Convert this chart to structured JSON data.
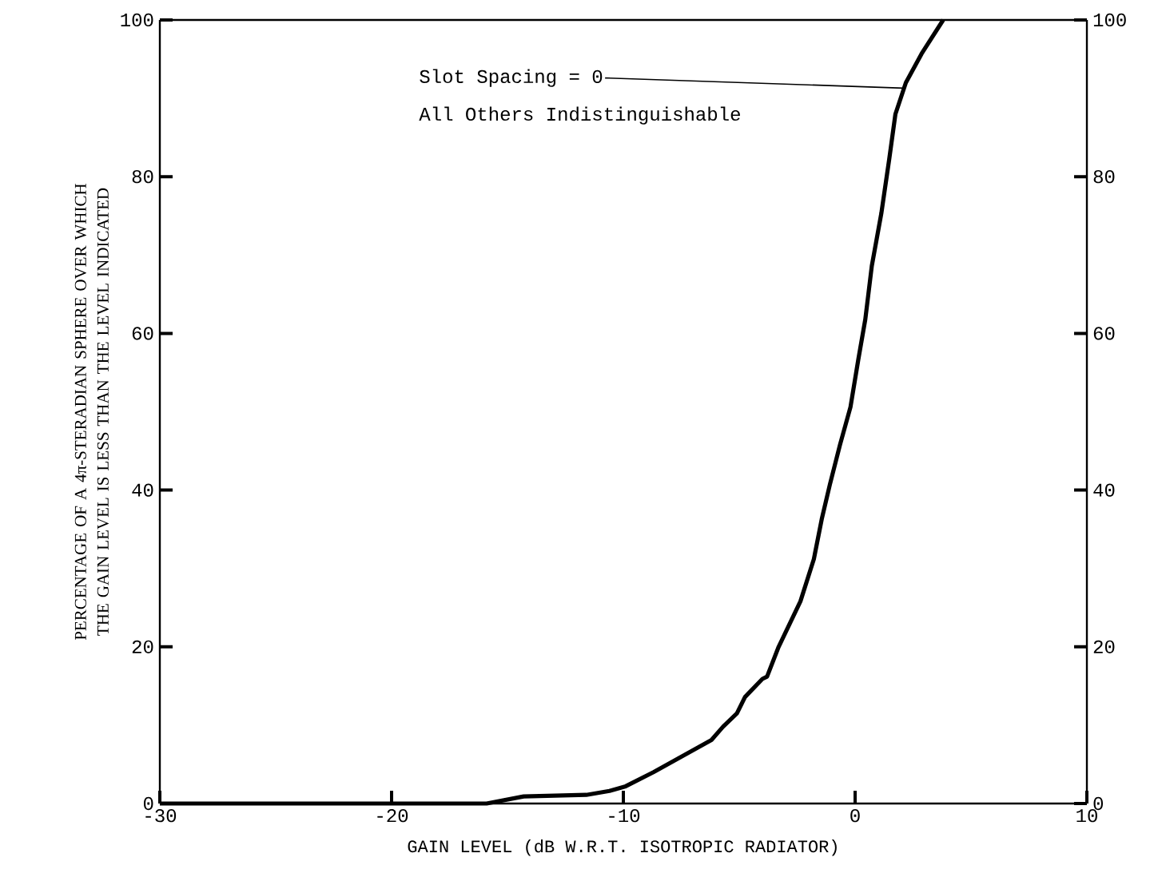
{
  "chart_data": {
    "type": "line",
    "xlabel": "GAIN LEVEL (dB W.R.T. ISOTROPIC RADIATOR)",
    "ylabel": "PERCENTAGE OF A 4π-STERADIAN SPHERE OVER WHICH THE GAIN LEVEL IS LESS THAN THE LEVEL INDICATED",
    "series": [
      {
        "color": "#000000",
        "x": [
          -30,
          -15.9,
          -14.3,
          -11.6,
          -10.6,
          -9.9,
          -8.7,
          -6.2,
          -5.7,
          -5.1,
          -4.75,
          -4.0,
          -3.8,
          -3.3,
          -2.36,
          -1.78,
          -1.44,
          -1.09,
          -0.65,
          -0.2,
          0.14,
          0.44,
          0.72,
          1.13,
          1.47,
          1.74,
          2.19,
          2.87,
          3.8
        ],
        "values": [
          0,
          0,
          0.9,
          1.1,
          1.6,
          2.2,
          4,
          8.1,
          9.8,
          11.5,
          13.6,
          15.9,
          16.2,
          20,
          25.8,
          31.2,
          36.3,
          40.7,
          45.8,
          50.6,
          56.7,
          61.8,
          68.6,
          75.3,
          82.2,
          88,
          92,
          95.7,
          100
        ]
      }
    ],
    "xlim": [
      -30,
      10
    ],
    "ylim": [
      0,
      100
    ],
    "xticks": [
      -30,
      -20,
      -10,
      0,
      10
    ],
    "yticks": [
      0,
      20,
      40,
      60,
      80,
      100
    ],
    "y2lim": [
      0,
      100
    ],
    "y2ticks": [
      0,
      20,
      40,
      60,
      80,
      100
    ],
    "annotations": [
      {
        "text": "Slot Spacing = 0",
        "x": 2.1,
        "y": 91.3
      },
      "All Others Indistinguishable"
    ],
    "grid": false,
    "legend": false,
    "marker": "none",
    "line_style": "solid"
  }
}
